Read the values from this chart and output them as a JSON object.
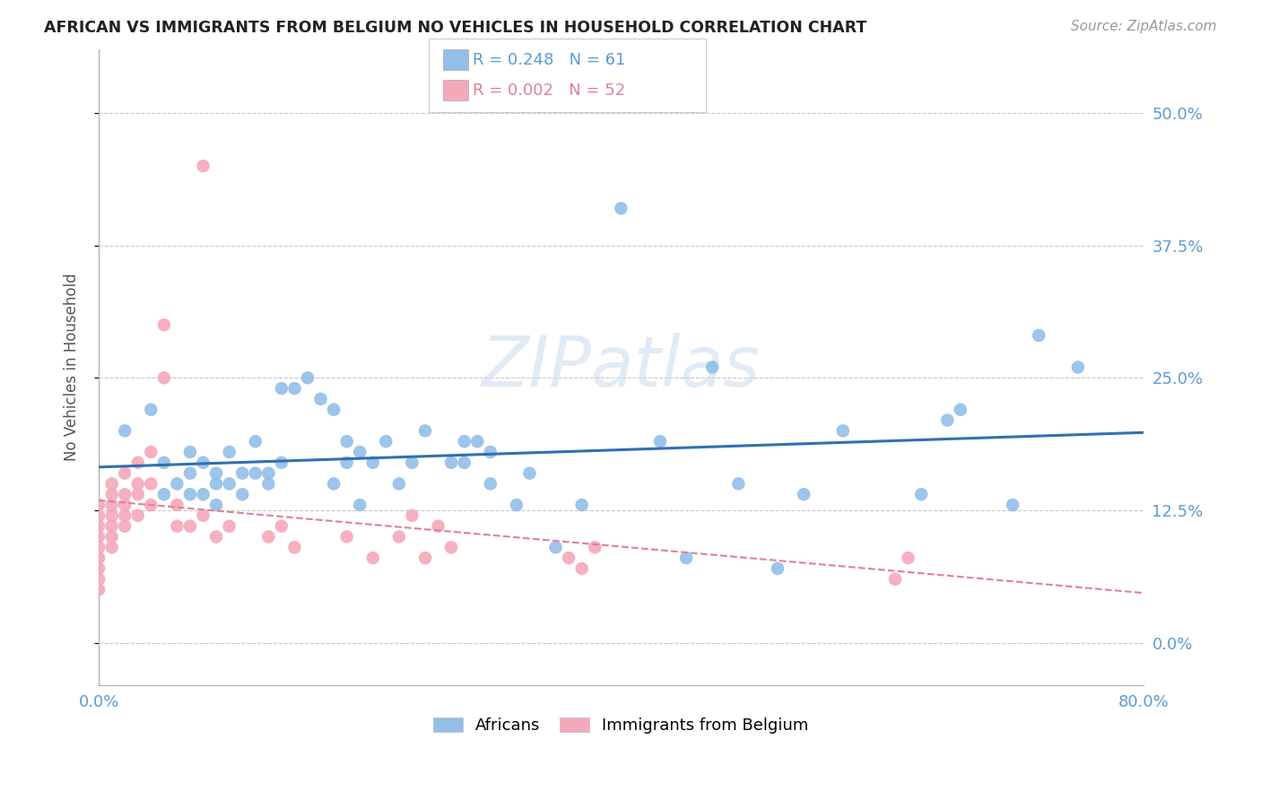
{
  "title": "AFRICAN VS IMMIGRANTS FROM BELGIUM NO VEHICLES IN HOUSEHOLD CORRELATION CHART",
  "source": "Source: ZipAtlas.com",
  "ylabel": "No Vehicles in Household",
  "xlim": [
    0.0,
    0.8
  ],
  "ylim": [
    -0.04,
    0.56
  ],
  "yticks": [
    0.0,
    0.125,
    0.25,
    0.375,
    0.5
  ],
  "ytick_labels": [
    "0.0%",
    "12.5%",
    "25.0%",
    "37.5%",
    "50.0%"
  ],
  "xticks": [
    0.0,
    0.1,
    0.2,
    0.3,
    0.4,
    0.5,
    0.6,
    0.7,
    0.8
  ],
  "xtick_labels": [
    "0.0%",
    "",
    "",
    "",
    "",
    "",
    "",
    "",
    "80.0%"
  ],
  "blue_color": "#92BEE8",
  "pink_color": "#F5A8BA",
  "trend_blue_color": "#3070B0",
  "trend_pink_color": "#E08098",
  "axis_label_color": "#5B9BD5",
  "grid_color": "#C8C8C8",
  "background_color": "#FFFFFF",
  "legend_label_blue": "Africans",
  "legend_label_pink": "Immigrants from Belgium",
  "blue_x": [
    0.02,
    0.04,
    0.05,
    0.05,
    0.06,
    0.07,
    0.07,
    0.07,
    0.08,
    0.08,
    0.09,
    0.09,
    0.09,
    0.1,
    0.1,
    0.11,
    0.11,
    0.12,
    0.12,
    0.13,
    0.13,
    0.14,
    0.14,
    0.15,
    0.16,
    0.17,
    0.18,
    0.18,
    0.19,
    0.19,
    0.2,
    0.2,
    0.21,
    0.22,
    0.23,
    0.24,
    0.25,
    0.27,
    0.28,
    0.28,
    0.29,
    0.3,
    0.3,
    0.32,
    0.33,
    0.35,
    0.37,
    0.4,
    0.43,
    0.45,
    0.47,
    0.49,
    0.52,
    0.54,
    0.57,
    0.63,
    0.65,
    0.66,
    0.7,
    0.72,
    0.75
  ],
  "blue_y": [
    0.2,
    0.22,
    0.17,
    0.14,
    0.15,
    0.18,
    0.16,
    0.14,
    0.17,
    0.14,
    0.16,
    0.15,
    0.13,
    0.18,
    0.15,
    0.16,
    0.14,
    0.16,
    0.19,
    0.16,
    0.15,
    0.17,
    0.24,
    0.24,
    0.25,
    0.23,
    0.22,
    0.15,
    0.17,
    0.19,
    0.18,
    0.13,
    0.17,
    0.19,
    0.15,
    0.17,
    0.2,
    0.17,
    0.19,
    0.17,
    0.19,
    0.18,
    0.15,
    0.13,
    0.16,
    0.09,
    0.13,
    0.41,
    0.19,
    0.08,
    0.26,
    0.15,
    0.07,
    0.14,
    0.2,
    0.14,
    0.21,
    0.22,
    0.13,
    0.29,
    0.26
  ],
  "pink_x": [
    0.0,
    0.0,
    0.0,
    0.0,
    0.0,
    0.0,
    0.0,
    0.0,
    0.0,
    0.01,
    0.01,
    0.01,
    0.01,
    0.01,
    0.01,
    0.01,
    0.02,
    0.02,
    0.02,
    0.02,
    0.02,
    0.03,
    0.03,
    0.03,
    0.03,
    0.04,
    0.04,
    0.04,
    0.05,
    0.05,
    0.06,
    0.06,
    0.07,
    0.08,
    0.08,
    0.09,
    0.1,
    0.13,
    0.14,
    0.15,
    0.19,
    0.21,
    0.23,
    0.24,
    0.25,
    0.26,
    0.27,
    0.36,
    0.37,
    0.38,
    0.61,
    0.62
  ],
  "pink_y": [
    0.05,
    0.06,
    0.07,
    0.08,
    0.09,
    0.1,
    0.11,
    0.12,
    0.13,
    0.09,
    0.1,
    0.11,
    0.12,
    0.13,
    0.14,
    0.15,
    0.11,
    0.12,
    0.13,
    0.14,
    0.16,
    0.12,
    0.14,
    0.15,
    0.17,
    0.13,
    0.15,
    0.18,
    0.25,
    0.3,
    0.11,
    0.13,
    0.11,
    0.45,
    0.12,
    0.1,
    0.11,
    0.1,
    0.11,
    0.09,
    0.1,
    0.08,
    0.1,
    0.12,
    0.08,
    0.11,
    0.09,
    0.08,
    0.07,
    0.09,
    0.06,
    0.08
  ]
}
